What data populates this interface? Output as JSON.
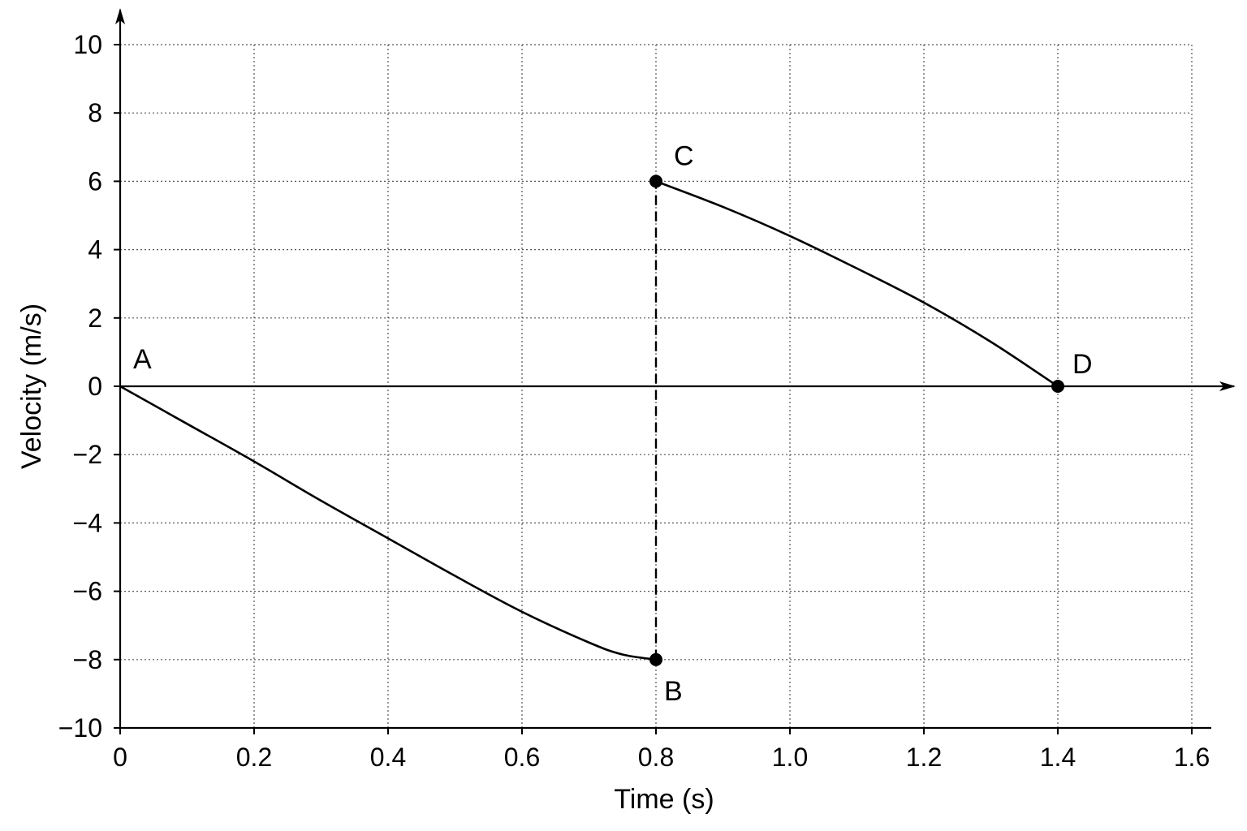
{
  "chart_data": {
    "type": "line",
    "title": "",
    "xlabel": "Time (s)",
    "ylabel": "Velocity (m/s)",
    "xlim": [
      0,
      1.6
    ],
    "ylim": [
      -10,
      10
    ],
    "xticks": [
      0,
      0.2,
      0.4,
      0.6,
      0.8,
      1.0,
      1.2,
      1.4,
      1.6
    ],
    "xtick_labels": [
      "0",
      "0.2",
      "0.4",
      "0.6",
      "0.8",
      "1.0",
      "1.2",
      "1.4",
      "1.6"
    ],
    "yticks": [
      -10,
      -8,
      -6,
      -4,
      -2,
      0,
      2,
      4,
      6,
      8,
      10
    ],
    "ytick_labels": [
      "−10",
      "−8",
      "−6",
      "−4",
      "−2",
      "0",
      "2",
      "4",
      "6",
      "8",
      "10"
    ],
    "grid": true,
    "series": [
      {
        "segment": "A-B",
        "x": [
          0,
          0.1,
          0.2,
          0.3,
          0.4,
          0.5,
          0.6,
          0.7,
          0.75,
          0.8
        ],
        "y": [
          0,
          -1.1,
          -2.2,
          -3.35,
          -4.45,
          -5.55,
          -6.6,
          -7.5,
          -7.85,
          -8
        ]
      },
      {
        "segment": "C-D",
        "x": [
          0.8,
          0.9,
          1.0,
          1.1,
          1.2,
          1.3,
          1.4
        ],
        "y": [
          6,
          5.25,
          4.4,
          3.45,
          2.45,
          1.3,
          0
        ]
      }
    ],
    "connector": {
      "style": "dashed",
      "from": [
        0.8,
        -8
      ],
      "to": [
        0.8,
        6
      ]
    },
    "points": [
      {
        "label": "A",
        "x": 0,
        "y": 0,
        "marker": false
      },
      {
        "label": "B",
        "x": 0.8,
        "y": -8,
        "marker": true
      },
      {
        "label": "C",
        "x": 0.8,
        "y": 6,
        "marker": true
      },
      {
        "label": "D",
        "x": 1.4,
        "y": 0,
        "marker": true
      }
    ]
  }
}
